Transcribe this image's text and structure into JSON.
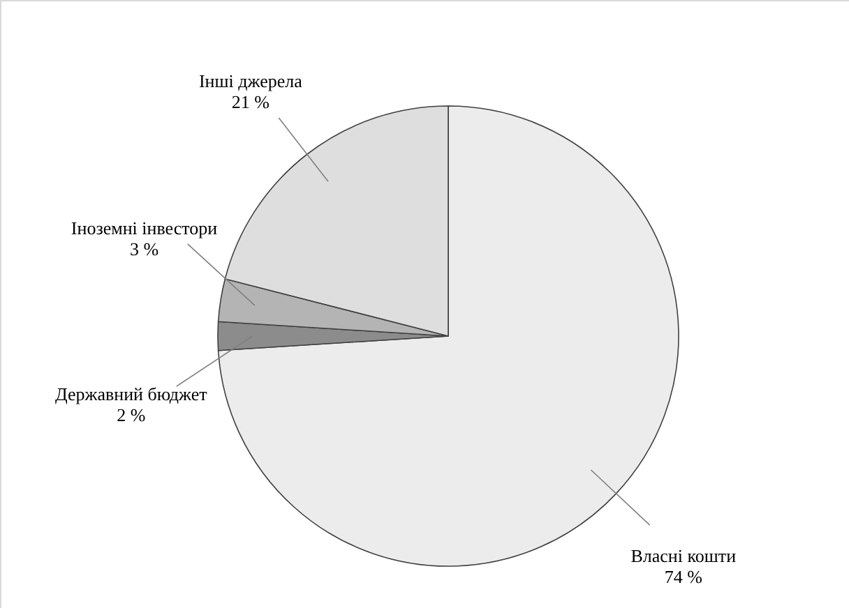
{
  "chart_data": {
    "type": "pie",
    "categories": [
      "Власні кошти",
      "Державний бюджет",
      "Іноземні інвестори",
      "Інші джерела"
    ],
    "values": [
      74,
      2,
      3,
      21
    ],
    "value_labels": [
      "74 %",
      "2 %",
      "3 %",
      "21 %"
    ],
    "colors": [
      "#ececec",
      "#8c8c8c",
      "#b4b4b4",
      "#dedede"
    ]
  }
}
